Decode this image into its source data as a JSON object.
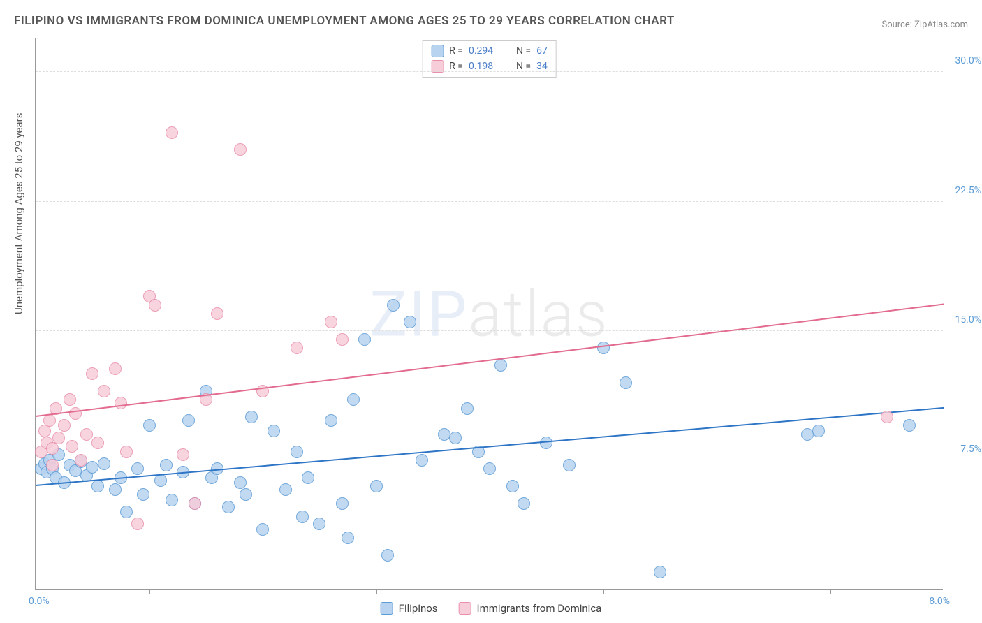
{
  "title": "FILIPINO VS IMMIGRANTS FROM DOMINICA UNEMPLOYMENT AMONG AGES 25 TO 29 YEARS CORRELATION CHART",
  "source_label": "Source: ",
  "source_name": "ZipAtlas.com",
  "y_axis_title": "Unemployment Among Ages 25 to 29 years",
  "watermark": {
    "prefix": "ZIP",
    "suffix": "atlas"
  },
  "chart": {
    "type": "scatter",
    "background_color": "#ffffff",
    "grid_color": "#dddddd",
    "axis_color": "#999999",
    "x": {
      "min": 0.0,
      "max": 8.0,
      "label_min": "0.0%",
      "label_max": "8.0%",
      "tick_count": 8
    },
    "y": {
      "min": 0.0,
      "max": 32.0,
      "ticks": [
        7.5,
        15.0,
        22.5,
        30.0
      ],
      "tick_labels": [
        "7.5%",
        "15.0%",
        "22.5%",
        "30.0%"
      ]
    },
    "series": [
      {
        "name": "Filipinos",
        "fill_color": "#b7d3ef",
        "stroke_color": "#5b9bd5",
        "marker_radius": 9,
        "trend": {
          "y_at_xmin": 6.0,
          "y_at_xmax": 10.5,
          "color": "#2e75c6",
          "width": 2
        },
        "R": 0.294,
        "N": 67,
        "points": [
          [
            0.05,
            7.0
          ],
          [
            0.08,
            7.3
          ],
          [
            0.1,
            6.8
          ],
          [
            0.12,
            7.5
          ],
          [
            0.15,
            7.0
          ],
          [
            0.18,
            6.5
          ],
          [
            0.2,
            7.8
          ],
          [
            0.25,
            6.2
          ],
          [
            0.3,
            7.2
          ],
          [
            0.35,
            6.9
          ],
          [
            0.4,
            7.4
          ],
          [
            0.45,
            6.6
          ],
          [
            0.5,
            7.1
          ],
          [
            0.55,
            6.0
          ],
          [
            0.6,
            7.3
          ],
          [
            0.7,
            5.8
          ],
          [
            0.75,
            6.5
          ],
          [
            0.8,
            4.5
          ],
          [
            0.9,
            7.0
          ],
          [
            0.95,
            5.5
          ],
          [
            1.0,
            9.5
          ],
          [
            1.1,
            6.3
          ],
          [
            1.15,
            7.2
          ],
          [
            1.2,
            5.2
          ],
          [
            1.3,
            6.8
          ],
          [
            1.35,
            9.8
          ],
          [
            1.4,
            5.0
          ],
          [
            1.5,
            11.5
          ],
          [
            1.55,
            6.5
          ],
          [
            1.6,
            7.0
          ],
          [
            1.7,
            4.8
          ],
          [
            1.8,
            6.2
          ],
          [
            1.85,
            5.5
          ],
          [
            1.9,
            10.0
          ],
          [
            2.0,
            3.5
          ],
          [
            2.1,
            9.2
          ],
          [
            2.2,
            5.8
          ],
          [
            2.3,
            8.0
          ],
          [
            2.35,
            4.2
          ],
          [
            2.4,
            6.5
          ],
          [
            2.5,
            3.8
          ],
          [
            2.6,
            9.8
          ],
          [
            2.7,
            5.0
          ],
          [
            2.75,
            3.0
          ],
          [
            2.8,
            11.0
          ],
          [
            2.9,
            14.5
          ],
          [
            3.0,
            6.0
          ],
          [
            3.1,
            2.0
          ],
          [
            3.15,
            16.5
          ],
          [
            3.3,
            15.5
          ],
          [
            3.4,
            7.5
          ],
          [
            3.6,
            9.0
          ],
          [
            3.7,
            8.8
          ],
          [
            3.8,
            10.5
          ],
          [
            3.9,
            8.0
          ],
          [
            4.0,
            7.0
          ],
          [
            4.1,
            13.0
          ],
          [
            4.2,
            6.0
          ],
          [
            4.3,
            5.0
          ],
          [
            4.5,
            8.5
          ],
          [
            4.7,
            7.2
          ],
          [
            5.0,
            14.0
          ],
          [
            5.2,
            12.0
          ],
          [
            5.5,
            1.0
          ],
          [
            6.8,
            9.0
          ],
          [
            6.9,
            9.2
          ],
          [
            7.7,
            9.5
          ]
        ]
      },
      {
        "name": "Immigrants from Dominica",
        "fill_color": "#f7cdd9",
        "stroke_color": "#e98fab",
        "marker_radius": 9,
        "trend": {
          "y_at_xmin": 10.0,
          "y_at_xmax": 16.5,
          "color": "#e26b8f",
          "width": 2
        },
        "R": 0.198,
        "N": 34,
        "points": [
          [
            0.05,
            8.0
          ],
          [
            0.08,
            9.2
          ],
          [
            0.1,
            8.5
          ],
          [
            0.12,
            9.8
          ],
          [
            0.15,
            8.2
          ],
          [
            0.18,
            10.5
          ],
          [
            0.2,
            8.8
          ],
          [
            0.25,
            9.5
          ],
          [
            0.3,
            11.0
          ],
          [
            0.32,
            8.3
          ],
          [
            0.35,
            10.2
          ],
          [
            0.4,
            7.5
          ],
          [
            0.45,
            9.0
          ],
          [
            0.5,
            12.5
          ],
          [
            0.55,
            8.5
          ],
          [
            0.6,
            11.5
          ],
          [
            0.7,
            12.8
          ],
          [
            0.75,
            10.8
          ],
          [
            0.8,
            8.0
          ],
          [
            0.9,
            3.8
          ],
          [
            1.0,
            17.0
          ],
          [
            1.05,
            16.5
          ],
          [
            1.2,
            26.5
          ],
          [
            1.3,
            7.8
          ],
          [
            1.4,
            5.0
          ],
          [
            1.5,
            11.0
          ],
          [
            1.6,
            16.0
          ],
          [
            1.8,
            25.5
          ],
          [
            2.0,
            11.5
          ],
          [
            2.3,
            14.0
          ],
          [
            2.6,
            15.5
          ],
          [
            2.7,
            14.5
          ],
          [
            7.5,
            10.0
          ],
          [
            0.15,
            7.2
          ]
        ]
      }
    ],
    "stats_box": {
      "rows": [
        {
          "swatch_fill": "#b7d3ef",
          "swatch_stroke": "#5b9bd5",
          "label_r": "R =",
          "val_r": "0.294",
          "label_n": "N =",
          "val_n": "67"
        },
        {
          "swatch_fill": "#f7cdd9",
          "swatch_stroke": "#e98fab",
          "label_r": "R =",
          "val_r": "0.198",
          "label_n": "N =",
          "val_n": "34"
        }
      ]
    },
    "legend": [
      {
        "swatch_fill": "#b7d3ef",
        "swatch_stroke": "#5b9bd5",
        "label": "Filipinos"
      },
      {
        "swatch_fill": "#f7cdd9",
        "swatch_stroke": "#e98fab",
        "label": "Immigrants from Dominica"
      }
    ]
  }
}
